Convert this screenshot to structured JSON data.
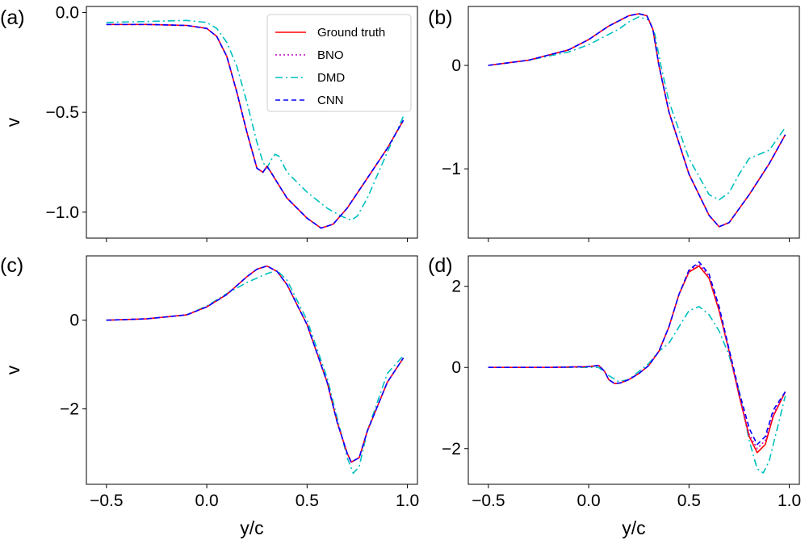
{
  "chart_data": [
    {
      "panel": "(a)",
      "type": "line",
      "xlim": [
        -0.6,
        1.05
      ],
      "ylim": [
        -1.13,
        0.03
      ],
      "xticks": [],
      "yticks": [
        0.0,
        -0.5,
        -1.0
      ],
      "ytick_labels": [
        "0.0",
        "−0.5",
        "−1.0"
      ],
      "ylabel": "v",
      "xlabel": "",
      "legend": true,
      "series": [
        {
          "name": "Ground truth",
          "x": [
            -0.5,
            -0.3,
            -0.1,
            0.0,
            0.05,
            0.1,
            0.15,
            0.2,
            0.25,
            0.28,
            0.3,
            0.32,
            0.35,
            0.4,
            0.5,
            0.57,
            0.63,
            0.7,
            0.8,
            0.9,
            0.98
          ],
          "y": [
            -0.06,
            -0.06,
            -0.065,
            -0.08,
            -0.12,
            -0.22,
            -0.4,
            -0.6,
            -0.78,
            -0.8,
            -0.77,
            -0.8,
            -0.85,
            -0.93,
            -1.03,
            -1.08,
            -1.06,
            -0.98,
            -0.83,
            -0.68,
            -0.54
          ]
        },
        {
          "name": "BNO",
          "x": [
            -0.5,
            -0.3,
            -0.1,
            0.0,
            0.05,
            0.1,
            0.15,
            0.2,
            0.25,
            0.28,
            0.3,
            0.32,
            0.35,
            0.4,
            0.5,
            0.57,
            0.63,
            0.7,
            0.8,
            0.9,
            0.98
          ],
          "y": [
            -0.06,
            -0.06,
            -0.065,
            -0.08,
            -0.12,
            -0.22,
            -0.4,
            -0.6,
            -0.78,
            -0.8,
            -0.77,
            -0.8,
            -0.85,
            -0.93,
            -1.03,
            -1.08,
            -1.06,
            -0.98,
            -0.83,
            -0.68,
            -0.54
          ]
        },
        {
          "name": "DMD",
          "x": [
            -0.5,
            -0.3,
            -0.1,
            0.0,
            0.05,
            0.1,
            0.15,
            0.2,
            0.25,
            0.28,
            0.3,
            0.32,
            0.34,
            0.36,
            0.4,
            0.5,
            0.6,
            0.67,
            0.72,
            0.75,
            0.8,
            0.9,
            0.98
          ],
          "y": [
            -0.05,
            -0.045,
            -0.04,
            -0.05,
            -0.08,
            -0.15,
            -0.27,
            -0.45,
            -0.65,
            -0.75,
            -0.78,
            -0.74,
            -0.71,
            -0.72,
            -0.8,
            -0.9,
            -0.98,
            -1.02,
            -1.04,
            -1.02,
            -0.93,
            -0.7,
            -0.52
          ]
        },
        {
          "name": "CNN",
          "x": [
            -0.5,
            -0.3,
            -0.1,
            0.0,
            0.05,
            0.1,
            0.15,
            0.2,
            0.25,
            0.28,
            0.3,
            0.32,
            0.35,
            0.4,
            0.5,
            0.57,
            0.63,
            0.7,
            0.8,
            0.9,
            0.98
          ],
          "y": [
            -0.06,
            -0.06,
            -0.065,
            -0.08,
            -0.12,
            -0.22,
            -0.4,
            -0.6,
            -0.78,
            -0.8,
            -0.77,
            -0.8,
            -0.85,
            -0.93,
            -1.03,
            -1.08,
            -1.06,
            -0.98,
            -0.83,
            -0.68,
            -0.54
          ]
        }
      ]
    },
    {
      "panel": "(b)",
      "type": "line",
      "xlim": [
        -0.6,
        1.05
      ],
      "ylim": [
        -1.67,
        0.57
      ],
      "xticks": [],
      "yticks": [
        0,
        -1
      ],
      "ytick_labels": [
        "0",
        "−1"
      ],
      "ylabel": "",
      "xlabel": "",
      "legend": false,
      "series": [
        {
          "name": "Ground truth",
          "x": [
            -0.5,
            -0.3,
            -0.1,
            0.0,
            0.1,
            0.2,
            0.25,
            0.29,
            0.32,
            0.35,
            0.4,
            0.5,
            0.6,
            0.65,
            0.7,
            0.8,
            0.9,
            0.98
          ],
          "y": [
            0.0,
            0.05,
            0.15,
            0.25,
            0.38,
            0.48,
            0.5,
            0.48,
            0.35,
            0.0,
            -0.45,
            -1.05,
            -1.45,
            -1.56,
            -1.52,
            -1.25,
            -0.95,
            -0.67
          ]
        },
        {
          "name": "BNO",
          "x": [
            -0.5,
            -0.3,
            -0.1,
            0.0,
            0.1,
            0.2,
            0.25,
            0.29,
            0.32,
            0.35,
            0.4,
            0.5,
            0.6,
            0.65,
            0.7,
            0.8,
            0.9,
            0.98
          ],
          "y": [
            0.0,
            0.05,
            0.15,
            0.25,
            0.38,
            0.48,
            0.5,
            0.48,
            0.35,
            0.0,
            -0.45,
            -1.05,
            -1.45,
            -1.56,
            -1.52,
            -1.25,
            -0.95,
            -0.67
          ]
        },
        {
          "name": "DMD",
          "x": [
            -0.5,
            -0.3,
            -0.1,
            0.0,
            0.1,
            0.15,
            0.2,
            0.25,
            0.3,
            0.33,
            0.36,
            0.4,
            0.5,
            0.6,
            0.65,
            0.7,
            0.75,
            0.8,
            0.9,
            0.98
          ],
          "y": [
            0.0,
            0.05,
            0.13,
            0.2,
            0.3,
            0.35,
            0.42,
            0.47,
            0.44,
            0.3,
            0.0,
            -0.35,
            -0.9,
            -1.25,
            -1.3,
            -1.23,
            -1.05,
            -0.9,
            -0.82,
            -0.6
          ]
        },
        {
          "name": "CNN",
          "x": [
            -0.5,
            -0.3,
            -0.1,
            0.0,
            0.1,
            0.2,
            0.25,
            0.29,
            0.32,
            0.35,
            0.4,
            0.5,
            0.6,
            0.65,
            0.7,
            0.8,
            0.9,
            0.98
          ],
          "y": [
            0.0,
            0.05,
            0.15,
            0.25,
            0.38,
            0.48,
            0.5,
            0.48,
            0.35,
            0.0,
            -0.45,
            -1.05,
            -1.45,
            -1.56,
            -1.52,
            -1.25,
            -0.95,
            -0.67
          ]
        }
      ]
    },
    {
      "panel": "(c)",
      "type": "line",
      "xlim": [
        -0.6,
        1.05
      ],
      "ylim": [
        -3.7,
        1.45
      ],
      "xticks": [
        -0.5,
        0.0,
        0.5,
        1.0
      ],
      "xtick_labels": [
        "−0.5",
        "0.0",
        "0.5",
        "1.0"
      ],
      "yticks": [
        0,
        -2
      ],
      "ytick_labels": [
        "0",
        "−2"
      ],
      "ylabel": "v",
      "xlabel": "y/c",
      "legend": false,
      "series": [
        {
          "name": "Ground truth",
          "x": [
            -0.5,
            -0.3,
            -0.1,
            0.0,
            0.1,
            0.2,
            0.25,
            0.3,
            0.35,
            0.4,
            0.5,
            0.6,
            0.65,
            0.7,
            0.72,
            0.76,
            0.8,
            0.9,
            0.98
          ],
          "y": [
            0.0,
            0.03,
            0.12,
            0.3,
            0.58,
            0.98,
            1.15,
            1.22,
            1.1,
            0.8,
            -0.1,
            -1.4,
            -2.3,
            -3.0,
            -3.2,
            -3.1,
            -2.5,
            -1.4,
            -0.85
          ]
        },
        {
          "name": "BNO",
          "x": [
            -0.5,
            -0.3,
            -0.1,
            0.0,
            0.1,
            0.2,
            0.25,
            0.3,
            0.35,
            0.4,
            0.5,
            0.6,
            0.65,
            0.7,
            0.72,
            0.76,
            0.8,
            0.9,
            0.98
          ],
          "y": [
            0.0,
            0.03,
            0.12,
            0.3,
            0.58,
            0.98,
            1.15,
            1.22,
            1.1,
            0.8,
            -0.1,
            -1.4,
            -2.3,
            -3.0,
            -3.2,
            -3.1,
            -2.5,
            -1.4,
            -0.85
          ]
        },
        {
          "name": "DMD",
          "x": [
            -0.5,
            -0.3,
            -0.1,
            0.0,
            0.1,
            0.2,
            0.3,
            0.35,
            0.4,
            0.5,
            0.6,
            0.65,
            0.7,
            0.73,
            0.76,
            0.8,
            0.9,
            0.98
          ],
          "y": [
            0.0,
            0.03,
            0.12,
            0.32,
            0.6,
            0.85,
            1.05,
            1.12,
            0.9,
            0.0,
            -1.3,
            -2.2,
            -3.1,
            -3.45,
            -3.3,
            -2.5,
            -1.2,
            -0.8
          ]
        },
        {
          "name": "CNN",
          "x": [
            -0.5,
            -0.3,
            -0.1,
            0.0,
            0.1,
            0.2,
            0.25,
            0.3,
            0.35,
            0.4,
            0.5,
            0.6,
            0.65,
            0.7,
            0.72,
            0.76,
            0.8,
            0.9,
            0.98
          ],
          "y": [
            0.0,
            0.03,
            0.12,
            0.3,
            0.58,
            0.98,
            1.15,
            1.22,
            1.1,
            0.8,
            -0.1,
            -1.4,
            -2.3,
            -3.0,
            -3.2,
            -3.1,
            -2.5,
            -1.4,
            -0.85
          ]
        }
      ]
    },
    {
      "panel": "(d)",
      "type": "line",
      "xlim": [
        -0.6,
        1.05
      ],
      "ylim": [
        -2.88,
        2.75
      ],
      "xticks": [
        -0.5,
        0.0,
        0.5,
        1.0
      ],
      "xtick_labels": [
        "−0.5",
        "0.0",
        "0.5",
        "1.0"
      ],
      "yticks": [
        2,
        0,
        -2
      ],
      "ytick_labels": [
        "2",
        "0",
        "−2"
      ],
      "ylabel": "",
      "xlabel": "y/c",
      "legend": false,
      "series": [
        {
          "name": "Ground truth",
          "x": [
            -0.5,
            -0.2,
            0.0,
            0.05,
            0.08,
            0.1,
            0.13,
            0.16,
            0.2,
            0.25,
            0.3,
            0.35,
            0.4,
            0.45,
            0.5,
            0.55,
            0.6,
            0.65,
            0.7,
            0.75,
            0.8,
            0.84,
            0.88,
            0.92,
            0.98
          ],
          "y": [
            0.0,
            0.0,
            0.02,
            0.05,
            -0.1,
            -0.3,
            -0.4,
            -0.38,
            -0.3,
            -0.15,
            0.05,
            0.4,
            1.0,
            1.8,
            2.35,
            2.5,
            2.2,
            1.4,
            0.4,
            -0.7,
            -1.7,
            -2.1,
            -1.9,
            -1.2,
            -0.6
          ]
        },
        {
          "name": "BNO",
          "x": [
            -0.5,
            -0.2,
            0.0,
            0.05,
            0.08,
            0.1,
            0.13,
            0.16,
            0.2,
            0.25,
            0.3,
            0.35,
            0.4,
            0.45,
            0.5,
            0.55,
            0.6,
            0.65,
            0.7,
            0.75,
            0.8,
            0.84,
            0.88,
            0.92,
            0.98
          ],
          "y": [
            0.0,
            0.0,
            0.02,
            0.05,
            -0.1,
            -0.3,
            -0.4,
            -0.38,
            -0.3,
            -0.15,
            0.05,
            0.4,
            1.0,
            1.8,
            2.38,
            2.55,
            2.25,
            1.45,
            0.4,
            -0.7,
            -1.65,
            -2.0,
            -1.8,
            -1.15,
            -0.6
          ]
        },
        {
          "name": "DMD",
          "x": [
            -0.5,
            -0.2,
            0.0,
            0.05,
            0.1,
            0.15,
            0.2,
            0.3,
            0.35,
            0.4,
            0.45,
            0.5,
            0.55,
            0.6,
            0.65,
            0.7,
            0.75,
            0.8,
            0.84,
            0.87,
            0.9,
            0.95,
            0.98
          ],
          "y": [
            0.0,
            0.0,
            0.0,
            0.0,
            -0.2,
            -0.35,
            -0.3,
            0.1,
            0.4,
            0.6,
            1.0,
            1.4,
            1.5,
            1.3,
            0.9,
            0.3,
            -0.6,
            -1.8,
            -2.5,
            -2.6,
            -2.3,
            -1.3,
            -0.7
          ]
        },
        {
          "name": "CNN",
          "x": [
            -0.5,
            -0.2,
            0.0,
            0.05,
            0.08,
            0.1,
            0.13,
            0.16,
            0.2,
            0.25,
            0.3,
            0.35,
            0.4,
            0.45,
            0.5,
            0.55,
            0.6,
            0.65,
            0.7,
            0.75,
            0.8,
            0.84,
            0.88,
            0.92,
            0.98
          ],
          "y": [
            0.0,
            0.0,
            0.02,
            0.05,
            -0.1,
            -0.3,
            -0.4,
            -0.38,
            -0.3,
            -0.15,
            0.05,
            0.4,
            1.0,
            1.8,
            2.4,
            2.6,
            2.3,
            1.5,
            0.45,
            -0.6,
            -1.5,
            -1.9,
            -1.7,
            -1.05,
            -0.6
          ]
        }
      ]
    }
  ],
  "legend": {
    "placement": "top-right",
    "entries": [
      {
        "name": "Ground truth",
        "color": "#ff0000",
        "dash": "solid"
      },
      {
        "name": "BNO",
        "color": "#bf00bf",
        "dash": "dotted"
      },
      {
        "name": "DMD",
        "color": "#00bfbf",
        "dash": "dashdot"
      },
      {
        "name": "CNN",
        "color": "#0000ff",
        "dash": "dashed"
      }
    ]
  }
}
